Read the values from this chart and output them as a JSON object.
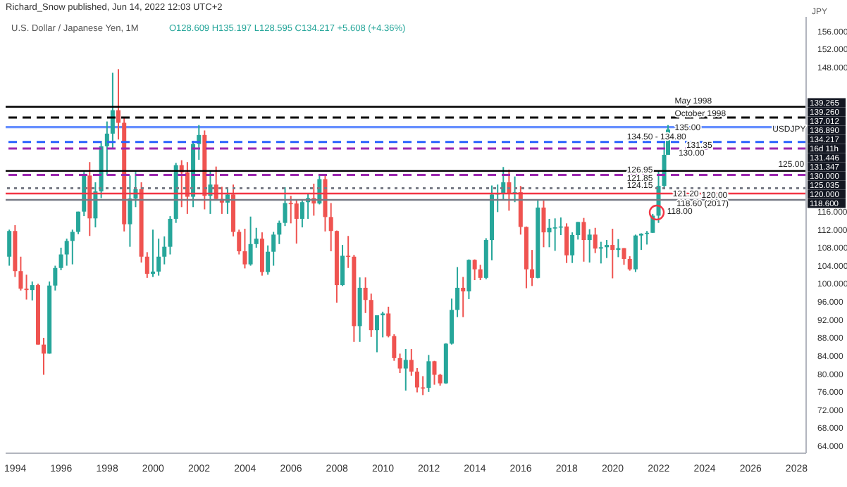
{
  "chart_data": {
    "type": "candlestick",
    "title": "U.S. Dollar / Japanese Yen, 1M",
    "ylabel": "JPY",
    "annotations": [
      "Richard_Snow published, Jun 14, 2022 12:03 UTC+2",
      "O128.609 H135.197 L128.595 C134.217 +5.608 (+4.36%)",
      {
        "text": "May 1998",
        "x": "2022-05",
        "y": 140.5
      },
      {
        "text": "October 1998",
        "x": "2022-05",
        "y": 137.7
      },
      {
        "text": "135.00",
        "x": "2022-05",
        "y": 134.5
      },
      {
        "text": "134.50 - 134.80",
        "x": "2020-04",
        "y": 132.6
      },
      {
        "text": "131.35",
        "x": "2022-11",
        "y": 130.6
      },
      {
        "text": "130.00",
        "x": "2022-07",
        "y": 128.9
      },
      {
        "text": "126.95",
        "x": "2020-04",
        "y": 125.2
      },
      {
        "text": "121.85",
        "x": "2020-04",
        "y": 123.3
      },
      {
        "text": "124.15",
        "x": "2020-04",
        "y": 121.7
      },
      {
        "text": "121.20",
        "x": "2022-04",
        "y": 119.9
      },
      {
        "text": "120.00",
        "x": "2023-07",
        "y": 119.5
      },
      {
        "text": "118.60 (2017)",
        "x": "2022-06",
        "y": 117.7
      },
      {
        "text": "118.00",
        "x": "2022-01",
        "y": 116.0
      },
      {
        "text": "125.00",
        "x": "2026-11",
        "y": 126.4
      },
      {
        "text": "USDJPY",
        "x": "2026-08",
        "y": 134.217
      },
      "139.265",
      "139.260",
      "137.012",
      "136.890",
      "134.217",
      "16d 11h",
      "131.446",
      "131.347",
      "130.000",
      "125.035",
      "120.000",
      "118.600"
    ],
    "x": [
      "1993-10",
      "1994-01",
      "1994-04",
      "1994-07",
      "1994-10",
      "1995-01",
      "1995-04",
      "1995-07",
      "1995-10",
      "1996-01",
      "1996-04",
      "1996-07",
      "1996-10",
      "1997-01",
      "1997-04",
      "1997-07",
      "1997-10",
      "1998-01",
      "1998-04",
      "1998-07",
      "1998-10",
      "1999-01",
      "1999-04",
      "1999-07",
      "1999-10",
      "2000-01",
      "2000-04",
      "2000-07",
      "2000-10",
      "2001-01",
      "2001-04",
      "2001-07",
      "2001-10",
      "2002-01",
      "2002-04",
      "2002-07",
      "2002-10",
      "2003-01",
      "2003-04",
      "2003-07",
      "2003-10",
      "2004-01",
      "2004-04",
      "2004-07",
      "2004-10",
      "2005-01",
      "2005-04",
      "2005-07",
      "2005-10",
      "2006-01",
      "2006-04",
      "2006-07",
      "2006-10",
      "2007-01",
      "2007-04",
      "2007-07",
      "2007-10",
      "2008-01",
      "2008-04",
      "2008-07",
      "2008-10",
      "2009-01",
      "2009-04",
      "2009-07",
      "2009-10",
      "2010-01",
      "2010-04",
      "2010-07",
      "2010-10",
      "2011-01",
      "2011-04",
      "2011-07",
      "2011-10",
      "2012-01",
      "2012-04",
      "2012-07",
      "2012-10",
      "2013-01",
      "2013-04",
      "2013-07",
      "2013-10",
      "2014-01",
      "2014-04",
      "2014-07",
      "2014-10",
      "2015-01",
      "2015-04",
      "2015-07",
      "2015-10",
      "2016-01",
      "2016-04",
      "2016-07",
      "2016-10",
      "2017-01",
      "2017-04",
      "2017-07",
      "2017-10",
      "2018-01",
      "2018-04",
      "2018-07",
      "2018-10",
      "2019-01",
      "2019-04",
      "2019-07",
      "2019-10",
      "2020-01",
      "2020-04",
      "2020-07",
      "2020-10",
      "2021-01",
      "2021-04",
      "2021-07",
      "2021-10",
      "2022-01",
      "2022-04",
      "2022-06"
    ],
    "ohlc": [
      [
        106,
        112,
        104,
        111.7
      ],
      [
        111.7,
        113,
        101.5,
        102.8
      ],
      [
        102.8,
        106,
        98.5,
        98.9
      ],
      [
        98.9,
        102,
        96.5,
        98.6
      ],
      [
        98.6,
        100.5,
        96.3,
        99.7
      ],
      [
        99.7,
        100,
        86.5,
        86.5
      ],
      [
        86.5,
        88,
        79.8,
        84.5
      ],
      [
        84.5,
        100.5,
        84.5,
        99.6
      ],
      [
        99.6,
        104,
        98.5,
        103.5
      ],
      [
        103.5,
        108,
        103,
        106.5
      ],
      [
        106.5,
        110,
        104,
        109.5
      ],
      [
        109.5,
        112,
        104.3,
        111.5
      ],
      [
        111.5,
        116,
        111,
        116
      ],
      [
        116,
        124.8,
        115,
        124
      ],
      [
        124,
        127,
        110.6,
        114.5
      ],
      [
        114.5,
        122.5,
        112.5,
        120.5
      ],
      [
        120.5,
        131.7,
        119,
        130.5
      ],
      [
        130.5,
        136,
        124,
        133.3
      ],
      [
        133.3,
        146.8,
        130,
        138.5
      ],
      [
        138.5,
        147.6,
        132,
        135.7
      ],
      [
        135.7,
        137,
        111.6,
        113.2
      ],
      [
        113.2,
        124,
        108.2,
        118.9
      ],
      [
        118.9,
        124.8,
        117,
        121
      ],
      [
        121,
        122.5,
        104.7,
        106
      ],
      [
        106,
        107,
        101.3,
        102.2
      ],
      [
        102.2,
        112,
        101.5,
        102.7
      ],
      [
        102.7,
        110,
        101.8,
        106
      ],
      [
        106,
        110.5,
        104.3,
        108.2
      ],
      [
        108.2,
        115,
        106.5,
        114.4
      ],
      [
        114.4,
        126.8,
        113.5,
        126.3
      ],
      [
        126.3,
        127.4,
        117,
        124.7
      ],
      [
        124.7,
        127,
        115.5,
        119.3
      ],
      [
        119.3,
        131.7,
        117,
        131
      ],
      [
        131,
        135.2,
        127.5,
        133
      ],
      [
        133,
        134,
        116.5,
        119.5
      ],
      [
        119.5,
        125,
        115.5,
        122
      ],
      [
        122,
        126,
        118.5,
        118.8
      ],
      [
        118.8,
        121.5,
        115.5,
        118
      ],
      [
        118,
        121,
        115.5,
        119.8
      ],
      [
        119.8,
        122,
        110.5,
        111.5
      ],
      [
        111.5,
        112,
        106.5,
        107.2
      ],
      [
        107.2,
        112.2,
        103.4,
        104.3
      ],
      [
        104.3,
        114.9,
        104,
        108.8
      ],
      [
        108.8,
        112.4,
        108,
        110
      ],
      [
        110,
        111.4,
        101.8,
        102.6
      ],
      [
        102.6,
        108.5,
        102,
        107.1
      ],
      [
        107.1,
        111.5,
        104,
        110.9
      ],
      [
        110.9,
        114,
        108.8,
        113.5
      ],
      [
        113.5,
        121.4,
        112.8,
        117.9
      ],
      [
        117.9,
        119.5,
        113.4,
        117.8
      ],
      [
        117.8,
        118.6,
        108.9,
        114.4
      ],
      [
        114.4,
        118.5,
        112.5,
        118.1
      ],
      [
        118.1,
        119.9,
        114.4,
        119
      ],
      [
        119,
        122.2,
        115.1,
        117.8
      ],
      [
        117.8,
        124.1,
        117.6,
        123.2
      ],
      [
        123.2,
        124.1,
        111.6,
        114.8
      ],
      [
        114.8,
        117.9,
        107.2,
        111.7
      ],
      [
        111.7,
        111.8,
        95.8,
        99.7
      ],
      [
        99.7,
        108.6,
        99.5,
        106.2
      ],
      [
        106.2,
        110.6,
        103.5,
        106
      ],
      [
        106,
        106.4,
        87.1,
        90.6
      ],
      [
        90.6,
        101.4,
        87.1,
        99.1
      ],
      [
        99.1,
        101.4,
        93.5,
        96.4
      ],
      [
        96.4,
        97.8,
        88.2,
        89.7
      ],
      [
        89.7,
        93,
        84.8,
        93
      ],
      [
        93,
        93.8,
        88.1,
        93.4
      ],
      [
        93.4,
        94.9,
        88.1,
        88.4
      ],
      [
        88.4,
        88.8,
        82.9,
        83.5
      ],
      [
        83.5,
        84.5,
        80.2,
        81.2
      ],
      [
        81.2,
        85.5,
        76.3,
        83.1
      ],
      [
        83.1,
        85.5,
        79.6,
        80.5
      ],
      [
        80.5,
        81.3,
        75.9,
        77
      ],
      [
        77,
        79.5,
        75.3,
        76.9
      ],
      [
        76.9,
        84.2,
        76,
        82.8
      ],
      [
        82.8,
        82.9,
        77.6,
        79.8
      ],
      [
        79.8,
        80,
        77.4,
        77.9
      ],
      [
        77.9,
        86.8,
        77.8,
        86.7
      ],
      [
        86.7,
        96.7,
        86.5,
        94.2
      ],
      [
        94.2,
        103.7,
        92.6,
        99.1
      ],
      [
        99.1,
        101.5,
        92.6,
        98.3
      ],
      [
        98.3,
        105.4,
        96.6,
        105.3
      ],
      [
        105.3,
        105.4,
        100.8,
        103.2
      ],
      [
        103.2,
        104.2,
        100.8,
        101.3
      ],
      [
        101.3,
        110.1,
        101,
        109.7
      ],
      [
        109.7,
        121.8,
        105.2,
        119.8
      ],
      [
        119.8,
        122,
        115.9,
        120.1
      ],
      [
        120.1,
        125.9,
        118.5,
        122.5
      ],
      [
        122.5,
        125.3,
        116.2,
        119.9
      ],
      [
        119.9,
        123.8,
        118.1,
        120.3
      ],
      [
        120.3,
        121.7,
        110.9,
        112.6
      ],
      [
        112.6,
        112.7,
        99,
        103.2
      ],
      [
        103.2,
        107.5,
        99.5,
        101.3
      ],
      [
        101.3,
        118.7,
        101.2,
        116.9
      ],
      [
        116.9,
        118.6,
        108.1,
        111.4
      ],
      [
        111.4,
        114.4,
        108.1,
        112.4
      ],
      [
        112.4,
        114.5,
        107.3,
        112.5
      ],
      [
        112.5,
        114.7,
        110.8,
        112.7
      ],
      [
        112.7,
        113.4,
        104.6,
        106.3
      ],
      [
        106.3,
        111.4,
        104.6,
        110.8
      ],
      [
        110.8,
        113.7,
        109.8,
        113.7
      ],
      [
        113.7,
        114.6,
        104.9,
        109.7
      ],
      [
        109.7,
        112.1,
        104.7,
        110.9
      ],
      [
        110.9,
        112.4,
        106.8,
        107.8
      ],
      [
        107.8,
        109.3,
        104.5,
        108.1
      ],
      [
        108.1,
        109.7,
        105.7,
        108.6
      ],
      [
        108.6,
        112.2,
        101.2,
        107.5
      ],
      [
        107.5,
        109.9,
        105.9,
        107.9
      ],
      [
        107.9,
        107.9,
        104.2,
        105.5
      ],
      [
        105.5,
        106.1,
        102.9,
        103.2
      ],
      [
        103.2,
        110.9,
        102.6,
        110.7
      ],
      [
        110.7,
        111.2,
        107.5,
        111.1
      ],
      [
        111.1,
        111.7,
        108.7,
        111.3
      ],
      [
        111.3,
        115.5,
        111.3,
        115.1
      ],
      [
        115.1,
        125.1,
        113.5,
        121.7
      ],
      [
        121.7,
        131.3,
        121.3,
        128.6
      ],
      [
        128.609,
        135.197,
        128.595,
        134.217
      ]
    ],
    "xlim": [
      "1993-08",
      "2028-06"
    ],
    "xticks": [
      "1994",
      "1996",
      "1998",
      "2000",
      "2002",
      "2004",
      "2006",
      "2008",
      "2010",
      "2012",
      "2014",
      "2016",
      "2018",
      "2020",
      "2022",
      "2024",
      "2026",
      "2028"
    ],
    "ylim": [
      62.4,
      159.2
    ],
    "yticks": [
      {
        "value": 64,
        "label": "64.000"
      },
      {
        "value": 68,
        "label": "68.000"
      },
      {
        "value": 72,
        "label": "72.000"
      },
      {
        "value": 76,
        "label": "76.000"
      },
      {
        "value": 80,
        "label": "80.000"
      },
      {
        "value": 84,
        "label": "84.000"
      },
      {
        "value": 88,
        "label": "88.000"
      },
      {
        "value": 92,
        "label": "92.000"
      },
      {
        "value": 96,
        "label": "96.000"
      },
      {
        "value": 100,
        "label": "100.000"
      },
      {
        "value": 104,
        "label": "104.000"
      },
      {
        "value": 108,
        "label": "108.000"
      },
      {
        "value": 112,
        "label": "112.000"
      },
      {
        "value": 116,
        "label": "116.000"
      },
      {
        "value": 148,
        "label": "148.000"
      },
      {
        "value": 152,
        "label": "152.000"
      },
      {
        "value": 156,
        "label": "156.000"
      }
    ],
    "ref_lines": [
      {
        "axis": "y",
        "value": 139.265,
        "color": "#000000",
        "line_style": "solid"
      },
      {
        "axis": "y",
        "value": 136.89,
        "color": "#000000",
        "line_style": "dashed"
      },
      {
        "axis": "y",
        "value": 131.446,
        "color": "#2962ff",
        "line_style": "dashed"
      },
      {
        "axis": "y",
        "value": 130,
        "color": "#9c27b0",
        "line_style": "dashed"
      },
      {
        "axis": "y",
        "value": 125.035,
        "color": "#000000",
        "line_style": "solid"
      },
      {
        "axis": "y",
        "value": 124.15,
        "color": "#9c27b0",
        "line_style": "dashed"
      },
      {
        "axis": "y",
        "value": 121.2,
        "color": "#787b86",
        "line_style": "dotted"
      },
      {
        "axis": "y",
        "value": 120,
        "color": "#f23645",
        "line_style": "solid"
      },
      {
        "axis": "y",
        "value": 118.6,
        "color": "#787b86",
        "line_style": "solid"
      }
    ],
    "bands": [
      {
        "axis": "y",
        "from": 134.5,
        "to": 135.0,
        "color": "#2962ff"
      }
    ]
  }
}
